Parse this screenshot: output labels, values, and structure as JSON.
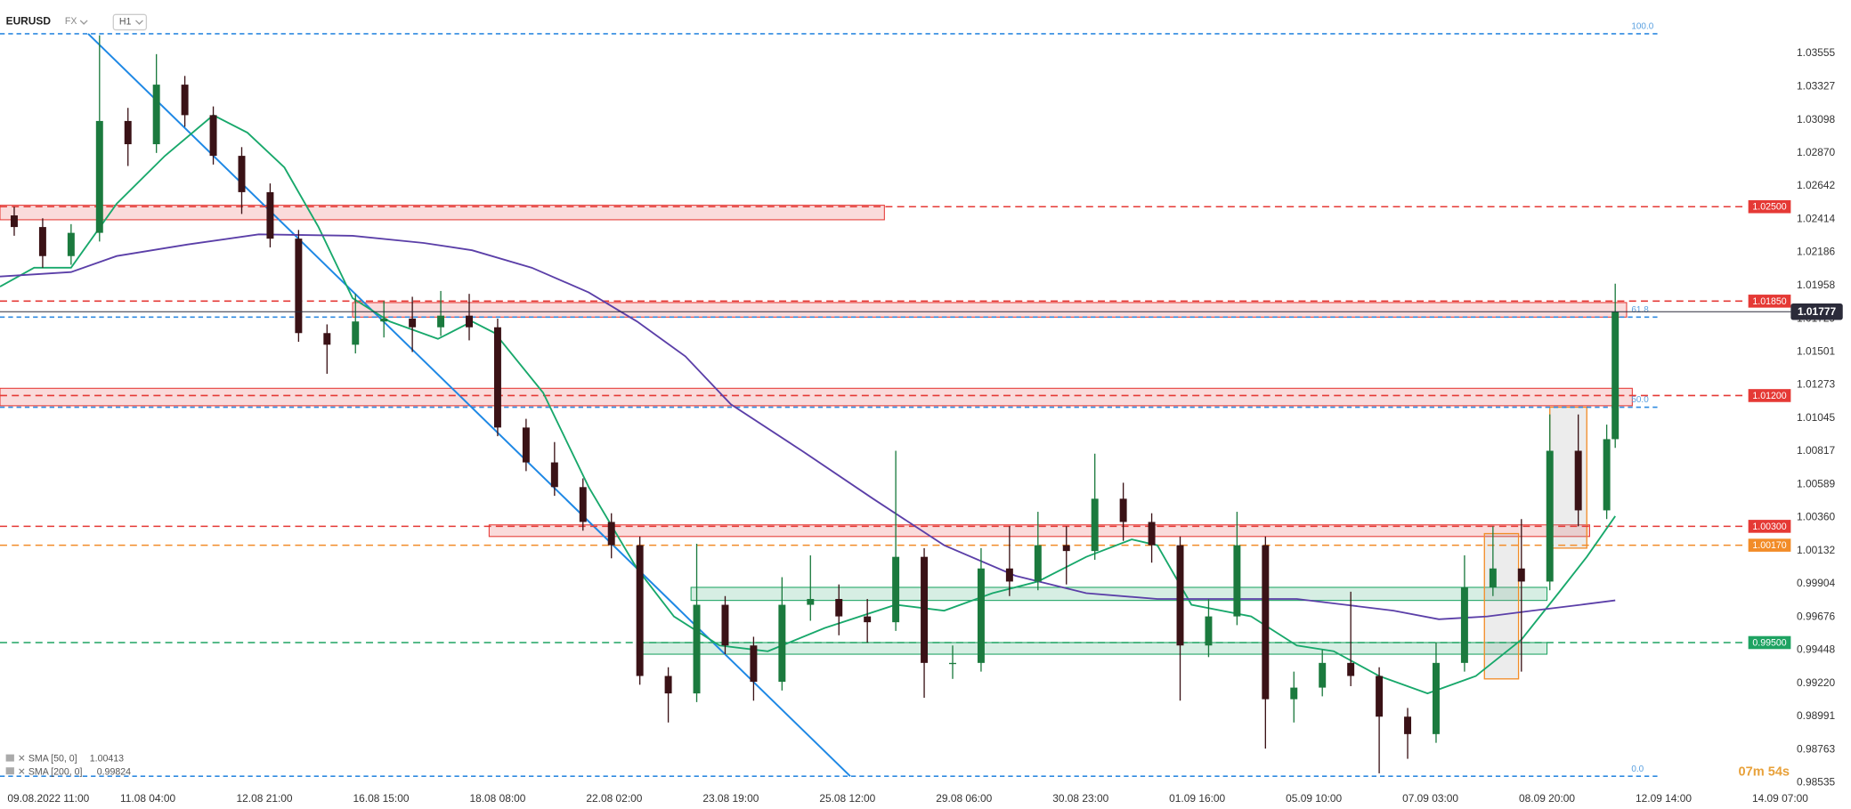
{
  "chart_data": {
    "type": "candlestick",
    "title": "EURUSD",
    "market": "FX",
    "timeframe": "H1",
    "up_color": "#1b7a3e",
    "down_color": "#3a1216",
    "x": [
      5,
      15,
      25,
      35,
      45,
      55,
      65,
      75,
      85,
      95,
      105,
      115,
      125,
      135,
      145,
      155,
      165,
      175,
      185,
      195,
      205,
      215,
      225,
      235,
      245,
      255,
      265,
      275,
      285,
      295,
      305,
      315,
      325,
      335,
      345,
      355,
      365,
      375,
      385,
      395,
      405,
      415,
      425,
      435,
      445,
      455,
      465,
      475,
      485,
      495,
      505,
      515,
      525,
      535,
      545,
      555,
      565,
      568
    ],
    "open": [
      1.0244,
      1.0236,
      1.0216,
      1.0232,
      1.0309,
      1.0293,
      1.0334,
      1.0313,
      1.0285,
      1.026,
      1.0228,
      1.0163,
      1.0155,
      1.0171,
      1.0173,
      1.0167,
      1.0175,
      1.0167,
      1.0098,
      1.0074,
      1.0057,
      1.0033,
      1.0017,
      0.9927,
      0.9915,
      0.9976,
      0.9948,
      0.9923,
      0.9976,
      0.998,
      0.9968,
      0.9964,
      1.0009,
      0.9936,
      0.9936,
      1.0001,
      0.9992,
      1.0017,
      1.0013,
      1.0049,
      1.0033,
      1.0017,
      0.9948,
      0.9968,
      1.0017,
      0.9911,
      0.9919,
      0.9936,
      0.9927,
      0.9899,
      0.9887,
      0.9936,
      0.9988,
      1.0001,
      0.9992,
      1.0082,
      1.0041,
      1.009
    ],
    "high": [
      1.025,
      1.0242,
      1.0238,
      1.0368,
      1.0318,
      1.0355,
      1.034,
      1.0319,
      1.0291,
      1.0266,
      1.0234,
      1.0169,
      1.019,
      1.0185,
      1.0188,
      1.0192,
      1.019,
      1.0173,
      1.0104,
      1.0088,
      1.0063,
      1.0039,
      1.0023,
      0.9933,
      1.0018,
      0.9982,
      0.9954,
      0.9995,
      1.001,
      0.999,
      0.998,
      1.0082,
      1.0015,
      0.9948,
      1.0015,
      1.003,
      1.004,
      1.003,
      1.008,
      1.006,
      1.0039,
      1.0023,
      0.998,
      1.004,
      1.0023,
      0.993,
      0.9945,
      0.9985,
      0.9933,
      0.9905,
      0.995,
      1.001,
      1.003,
      1.0035,
      1.0107,
      1.0107,
      1.01,
      1.0197
    ],
    "low": [
      1.023,
      1.0208,
      1.021,
      1.0226,
      1.0278,
      1.0287,
      1.0305,
      1.0279,
      1.0245,
      1.0222,
      1.0157,
      1.0135,
      1.0149,
      1.016,
      1.015,
      1.0161,
      1.0158,
      1.0092,
      1.0068,
      1.0051,
      1.0027,
      1.0008,
      0.9921,
      0.9895,
      0.9909,
      0.9942,
      0.991,
      0.9917,
      0.9965,
      0.9955,
      0.995,
      0.9958,
      0.9912,
      0.9925,
      0.993,
      0.9982,
      0.9986,
      0.999,
      1.0007,
      1.002,
      1.0005,
      0.991,
      0.994,
      0.9962,
      0.9877,
      0.9895,
      0.9913,
      0.992,
      0.986,
      0.987,
      0.9881,
      0.993,
      0.9982,
      0.993,
      0.9986,
      1.003,
      1.0035,
      1.0084
    ],
    "close": [
      1.0236,
      1.0216,
      1.0232,
      1.0309,
      1.0293,
      1.0334,
      1.0313,
      1.0285,
      1.026,
      1.0228,
      1.0163,
      1.0155,
      1.0171,
      1.0173,
      1.0167,
      1.0175,
      1.0167,
      1.0098,
      1.0074,
      1.0057,
      1.0033,
      1.0017,
      0.9927,
      0.9915,
      0.9976,
      0.9948,
      0.9923,
      0.9976,
      0.998,
      0.9968,
      0.9964,
      1.0009,
      0.9936,
      0.9936,
      1.0001,
      0.9992,
      1.0017,
      1.0013,
      1.0049,
      1.0033,
      1.0017,
      0.9948,
      0.9968,
      1.0017,
      0.9911,
      0.9919,
      0.9936,
      0.9927,
      0.9899,
      0.9887,
      0.9936,
      0.9988,
      1.0001,
      0.9992,
      1.0082,
      1.0041,
      1.009,
      1.01777
    ],
    "series": [
      {
        "name": "SMA [50, 0]",
        "last_value": 1.00413,
        "color": "#18a86b",
        "x": [
          0,
          12,
          25,
          41,
          58,
          75,
          87,
          100,
          112,
          124,
          137,
          154,
          166,
          174,
          191,
          207,
          224,
          237,
          253,
          270,
          290,
          315,
          332,
          349,
          365,
          382,
          398,
          407,
          419,
          440,
          456,
          469,
          485,
          502,
          519,
          535,
          548,
          558,
          568
        ],
        "values": [
          1.0195,
          1.0208,
          1.0208,
          1.0252,
          1.0285,
          1.0313,
          1.0301,
          1.0277,
          1.0236,
          1.0187,
          1.0171,
          1.0159,
          1.0171,
          1.0163,
          1.0122,
          1.0057,
          1.0001,
          0.9968,
          0.9948,
          0.9944,
          0.996,
          0.9976,
          0.9972,
          0.9984,
          0.9992,
          1.0009,
          1.0021,
          1.0017,
          0.9976,
          0.9968,
          0.9948,
          0.9944,
          0.9927,
          0.9915,
          0.9927,
          0.9952,
          0.9984,
          1.0009,
          1.0037
        ]
      },
      {
        "name": "SMA [200, 0]",
        "last_value": 0.99824,
        "color": "#5b3fa8",
        "x": [
          0,
          25,
          41,
          66,
          91,
          124,
          149,
          166,
          187,
          207,
          224,
          241,
          257,
          282,
          307,
          332,
          357,
          382,
          407,
          432,
          456,
          473,
          490,
          506,
          523,
          539,
          556,
          568
        ],
        "values": [
          1.0202,
          1.0205,
          1.0216,
          1.0224,
          1.0231,
          1.023,
          1.0225,
          1.022,
          1.0208,
          1.0191,
          1.0171,
          1.0147,
          1.0114,
          1.0082,
          1.0049,
          1.0017,
          0.9996,
          0.9984,
          0.998,
          0.998,
          0.998,
          0.9976,
          0.9972,
          0.9966,
          0.9968,
          0.9972,
          0.9976,
          0.9979
        ]
      }
    ],
    "current_price": 1.01777,
    "levels": [
      {
        "value": 1.025,
        "label": "1.02500",
        "color": "#e53935"
      },
      {
        "value": 1.0185,
        "label": "1.01850",
        "color": "#e53935"
      },
      {
        "value": 1.012,
        "label": "1.01200",
        "color": "#e53935"
      },
      {
        "value": 1.003,
        "label": "1.00300",
        "color": "#e53935"
      },
      {
        "value": 1.0017,
        "label": "1.00170",
        "color": "#f28c28"
      },
      {
        "value": 0.995,
        "label": "0.99500",
        "color": "#1ea362"
      }
    ],
    "zones": [
      {
        "x": [
          0,
          311
        ],
        "y": [
          1.0241,
          1.0251
        ],
        "color": "#e53935"
      },
      {
        "x": [
          124,
          572
        ],
        "y": [
          1.0174,
          1.0184
        ],
        "color": "#e53935"
      },
      {
        "x": [
          0,
          574
        ],
        "y": [
          1.0113,
          1.0125
        ],
        "color": "#e53935"
      },
      {
        "x": [
          172,
          559
        ],
        "y": [
          1.0023,
          1.0031
        ],
        "color": "#e53935"
      },
      {
        "x": [
          243,
          544
        ],
        "y": [
          0.9979,
          0.9988
        ],
        "color": "#1ea362"
      },
      {
        "x": [
          224,
          544
        ],
        "y": [
          0.9942,
          0.995
        ],
        "color": "#1ea362"
      }
    ],
    "boxes": [
      {
        "x": [
          522,
          534
        ],
        "y": [
          0.9925,
          1.0025
        ]
      },
      {
        "x": [
          545,
          558
        ],
        "y": [
          1.0015,
          1.0112
        ]
      }
    ],
    "fib": [
      {
        "label": "100.0",
        "value": 1.0369
      },
      {
        "label": "61.8",
        "value": 1.0174
      },
      {
        "label": "50.0",
        "value": 1.0112
      },
      {
        "label": "0.0",
        "value": 0.9858
      }
    ],
    "trendline": {
      "x": [
        31,
        299
      ],
      "y": [
        1.0369,
        0.9858
      ]
    },
    "timer": "07m 54s",
    "xlim": [
      0,
      626
    ],
    "xticks": [
      {
        "value": 17,
        "label": "09.08.2022 11:00"
      },
      {
        "value": 52,
        "label": "11.08 04:00"
      },
      {
        "value": 93,
        "label": "12.08 21:00"
      },
      {
        "value": 134,
        "label": "16.08 15:00"
      },
      {
        "value": 175,
        "label": "18.08 08:00"
      },
      {
        "value": 216,
        "label": "22.08 02:00"
      },
      {
        "value": 257,
        "label": "23.08 19:00"
      },
      {
        "value": 298,
        "label": "25.08 12:00"
      },
      {
        "value": 339,
        "label": "29.08 06:00"
      },
      {
        "value": 380,
        "label": "30.08 23:00"
      },
      {
        "value": 421,
        "label": "01.09 16:00"
      },
      {
        "value": 462,
        "label": "05.09 10:00"
      },
      {
        "value": 503,
        "label": "07.09 03:00"
      },
      {
        "value": 544,
        "label": "08.09 20:00"
      },
      {
        "value": 585,
        "label": "12.09 14:00"
      },
      {
        "value": 626,
        "label": "14.09 07:00"
      }
    ],
    "ylim": [
      0.98503,
      1.03904
    ],
    "yticks": [
      1.03555,
      1.03327,
      1.03098,
      {
        "value": 1.0287,
        "label": "1.02870"
      },
      1.02642,
      1.02414,
      1.02186,
      1.01958,
      1.01729,
      1.01501,
      1.01273,
      1.01045,
      1.00817,
      1.00589,
      {
        "value": 1.0036,
        "label": "1.00360"
      },
      1.00132,
      0.99904,
      0.99676,
      0.99448,
      {
        "value": 0.9922,
        "label": "0.99220"
      },
      0.98991,
      0.98763,
      0.98535
    ]
  }
}
